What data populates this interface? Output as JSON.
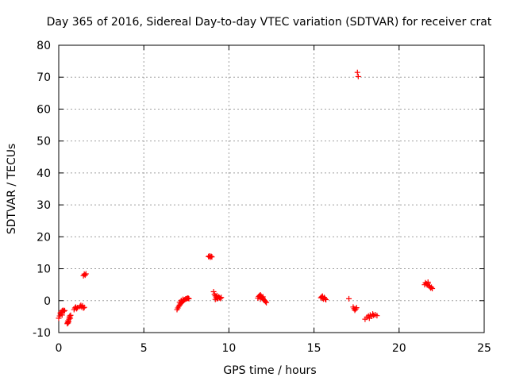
{
  "chart_data": {
    "type": "scatter",
    "title": "Day 365 of 2016, Sidereal Day-to-day VTEC variation (SDTVAR) for receiver crat",
    "xlabel": "GPS time / hours",
    "ylabel": "SDTVAR / TECUs",
    "xlim": [
      0,
      25
    ],
    "ylim": [
      -10,
      80
    ],
    "xticks": [
      0,
      5,
      10,
      15,
      20,
      25
    ],
    "yticks": [
      -10,
      0,
      10,
      20,
      30,
      40,
      50,
      60,
      70,
      80
    ],
    "grid": true,
    "marker": "+",
    "color": "#ff0000",
    "series": [
      {
        "name": "SDTVAR",
        "points": [
          [
            0.0,
            -5.5
          ],
          [
            0.05,
            -4.8
          ],
          [
            0.1,
            -4.2
          ],
          [
            0.15,
            -3.6
          ],
          [
            0.2,
            -3.2
          ],
          [
            0.25,
            -3.0
          ],
          [
            0.3,
            -3.3
          ],
          [
            0.35,
            -3.1
          ],
          [
            0.1,
            -3.8
          ],
          [
            0.2,
            -4.5
          ],
          [
            0.5,
            -7.2
          ],
          [
            0.52,
            -6.8
          ],
          [
            0.55,
            -6.3
          ],
          [
            0.58,
            -6.6
          ],
          [
            0.6,
            -5.8
          ],
          [
            0.62,
            -5.2
          ],
          [
            0.65,
            -4.8
          ],
          [
            0.68,
            -5.5
          ],
          [
            0.7,
            -4.6
          ],
          [
            0.55,
            -7.0
          ],
          [
            0.9,
            -2.8
          ],
          [
            0.95,
            -2.3
          ],
          [
            1.0,
            -2.0
          ],
          [
            1.05,
            -2.5
          ],
          [
            1.1,
            -2.2
          ],
          [
            1.25,
            -1.8
          ],
          [
            1.3,
            -1.5
          ],
          [
            1.35,
            -2.0
          ],
          [
            1.4,
            -1.6
          ],
          [
            1.45,
            -2.3
          ],
          [
            1.5,
            -2.1
          ],
          [
            1.45,
            7.8
          ],
          [
            1.5,
            8.3
          ],
          [
            1.55,
            8.0
          ],
          [
            1.6,
            8.4
          ],
          [
            6.95,
            -2.8
          ],
          [
            7.0,
            -2.3
          ],
          [
            7.05,
            -1.8
          ],
          [
            7.1,
            -1.4
          ],
          [
            7.15,
            -1.0
          ],
          [
            7.2,
            -0.7
          ],
          [
            7.25,
            -0.4
          ],
          [
            7.3,
            -0.1
          ],
          [
            7.35,
            0.1
          ],
          [
            7.4,
            0.3
          ],
          [
            7.45,
            0.5
          ],
          [
            7.5,
            0.6
          ],
          [
            7.55,
            0.7
          ],
          [
            7.6,
            0.8
          ],
          [
            7.65,
            0.6
          ],
          [
            7.1,
            -0.5
          ],
          [
            7.2,
            0.0
          ],
          [
            7.3,
            0.4
          ],
          [
            8.8,
            13.8
          ],
          [
            8.85,
            14.0
          ],
          [
            8.9,
            13.6
          ],
          [
            8.95,
            13.9
          ],
          [
            9.0,
            13.7
          ],
          [
            9.1,
            2.8
          ],
          [
            9.15,
            2.0
          ],
          [
            9.2,
            1.5
          ],
          [
            9.25,
            1.0
          ],
          [
            9.3,
            0.6
          ],
          [
            9.35,
            0.8
          ],
          [
            9.4,
            1.2
          ],
          [
            9.45,
            0.9
          ],
          [
            9.5,
            0.7
          ],
          [
            9.55,
            1.0
          ],
          [
            9.2,
            0.4
          ],
          [
            9.3,
            1.6
          ],
          [
            11.7,
            0.8
          ],
          [
            11.75,
            1.3
          ],
          [
            11.8,
            1.6
          ],
          [
            11.85,
            1.8
          ],
          [
            11.9,
            1.4
          ],
          [
            11.95,
            1.0
          ],
          [
            12.0,
            0.7
          ],
          [
            12.05,
            0.3
          ],
          [
            12.1,
            0.0
          ],
          [
            12.15,
            -0.3
          ],
          [
            12.2,
            -0.6
          ],
          [
            11.85,
            0.5
          ],
          [
            12.0,
            1.2
          ],
          [
            15.4,
            0.9
          ],
          [
            15.45,
            1.2
          ],
          [
            15.5,
            0.8
          ],
          [
            15.55,
            0.5
          ],
          [
            15.6,
            1.0
          ],
          [
            15.65,
            0.6
          ],
          [
            15.7,
            0.3
          ],
          [
            15.5,
            1.4
          ],
          [
            17.05,
            0.6
          ],
          [
            17.3,
            -2.0
          ],
          [
            17.35,
            -2.5
          ],
          [
            17.4,
            -3.0
          ],
          [
            17.45,
            -2.6
          ],
          [
            17.5,
            -2.2
          ],
          [
            17.55,
            71.5
          ],
          [
            17.6,
            70.2
          ],
          [
            18.0,
            -5.8
          ],
          [
            18.1,
            -5.2
          ],
          [
            18.2,
            -4.8
          ],
          [
            18.3,
            -4.5
          ],
          [
            18.4,
            -4.9
          ],
          [
            18.5,
            -4.6
          ],
          [
            18.6,
            -4.4
          ],
          [
            18.7,
            -4.7
          ],
          [
            18.25,
            -5.5
          ],
          [
            18.45,
            -4.2
          ],
          [
            21.5,
            5.0
          ],
          [
            21.55,
            5.6
          ],
          [
            21.6,
            5.3
          ],
          [
            21.65,
            4.9
          ],
          [
            21.7,
            5.4
          ],
          [
            21.75,
            4.7
          ],
          [
            21.8,
            4.4
          ],
          [
            21.85,
            4.0
          ],
          [
            21.9,
            4.2
          ],
          [
            21.95,
            3.8
          ],
          [
            21.7,
            5.8
          ]
        ]
      }
    ]
  }
}
